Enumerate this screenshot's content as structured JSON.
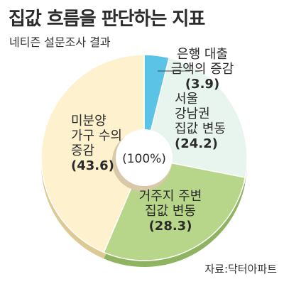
{
  "header": {
    "title": "집값 흐름을 판단하는 지표",
    "subtitle": "네티즌 설문조사 결과"
  },
  "source": "자료:닥터아파트",
  "center_label": "(100%)",
  "chart_data": {
    "type": "pie",
    "title": "집값 흐름을 판단하는 지표",
    "subtitle": "네티즌 설문조사 결과",
    "unit": "%",
    "start_angle_deg": 0,
    "slices": [
      {
        "lines": [
          "은행 대출",
          "금액의 증감"
        ],
        "value_label": "(3.9)",
        "value": 3.9,
        "color": "#5bc3e6",
        "side_color": "#1f7f93"
      },
      {
        "lines": [
          "서울",
          "강남권",
          "집값 변동"
        ],
        "value_label": "(24.2)",
        "value": 24.2,
        "color": "#e8f5ee",
        "side_color": "#c9ddd0"
      },
      {
        "lines": [
          "거주지 주변",
          "집값 변동"
        ],
        "value_label": "(28.3)",
        "value": 28.3,
        "color": "#b8d689",
        "side_color": "#8fb461"
      },
      {
        "lines": [
          "미분양",
          "가구 수의",
          "증감"
        ],
        "value_label": "(43.6)",
        "value": 43.6,
        "color": "#fdf2cd",
        "side_color": "#dcc994"
      }
    ]
  }
}
